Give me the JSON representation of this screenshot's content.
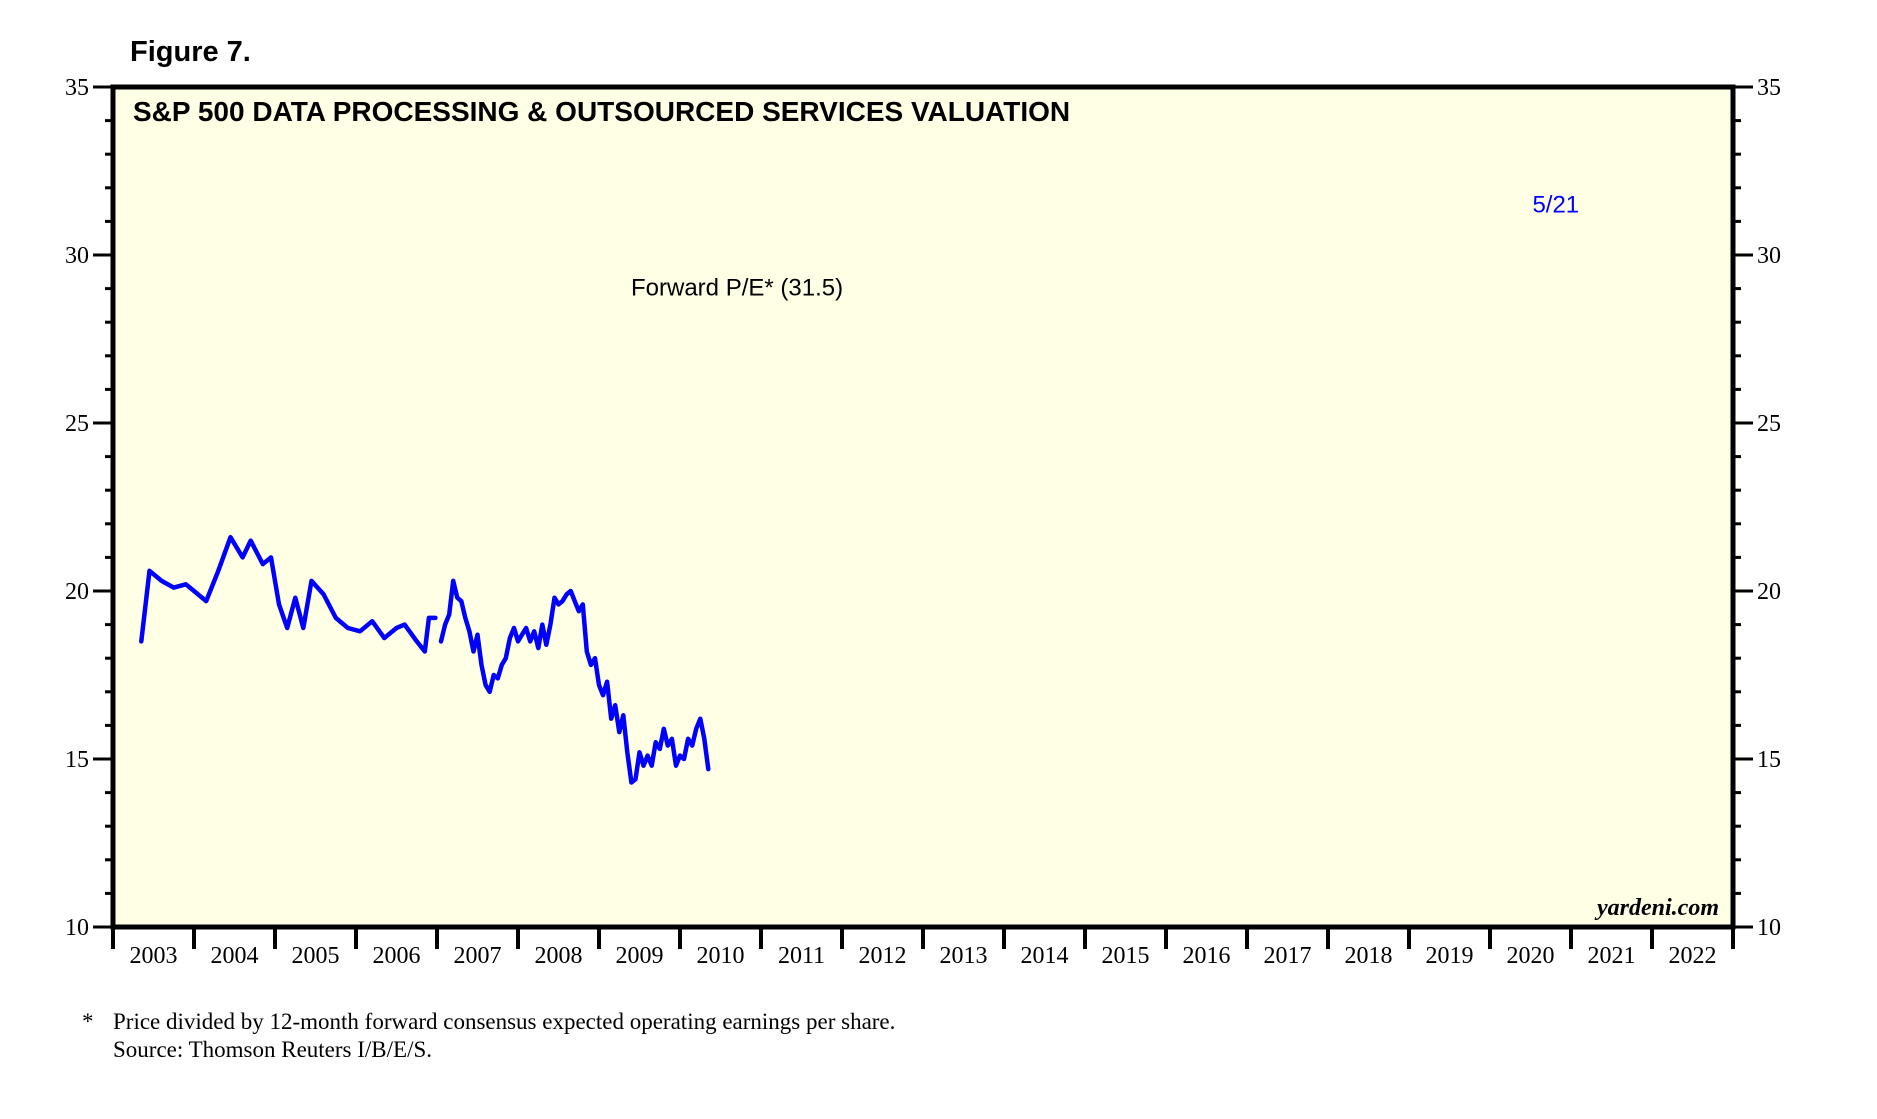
{
  "figure_label": "Figure 7.",
  "footnote": {
    "marker": "*",
    "line1": "Price divided by 12-month forward consensus expected operating earnings per share.",
    "line2": "Source: Thomson Reuters I/B/E/S."
  },
  "colors": {
    "background": "#ffffe6",
    "series": "#0000ff",
    "axis": "#000000"
  },
  "chart_data": {
    "type": "line",
    "title": "S&P 500 DATA PROCESSING & OUTSOURCED SERVICES VALUATION",
    "xlabel": "",
    "ylabel": "",
    "xlim": [
      2003,
      2023
    ],
    "ylim": [
      10,
      35
    ],
    "y_ticks": [
      10,
      15,
      20,
      25,
      30,
      35
    ],
    "y_minor_step": 1,
    "y_axes": [
      "left",
      "right"
    ],
    "x_tick_labels": [
      "2003",
      "2004",
      "2005",
      "2006",
      "2007",
      "2008",
      "2009",
      "2010",
      "2011",
      "2012",
      "2013",
      "2014",
      "2015",
      "2016",
      "2017",
      "2018",
      "2019",
      "2020",
      "2021",
      "2022"
    ],
    "grid": false,
    "legend": "none",
    "watermark": "yardeni.com",
    "annotations": [
      {
        "text": "Forward P/E* (31.5)",
        "x": 2011.0,
        "y": 28.8
      },
      {
        "text": "5/21",
        "x": 2020.45,
        "y": 31.5
      }
    ],
    "series": [
      {
        "name": "Forward P/E",
        "segments": [
          {
            "x": [
              2003.35,
              2003.45,
              2003.6,
              2003.75,
              2003.9,
              2004.0,
              2004.15,
              2004.3,
              2004.45,
              2004.6,
              2004.7,
              2004.85,
              2004.95,
              2005.05,
              2005.15,
              2005.25,
              2005.35,
              2005.45,
              2005.6,
              2005.75,
              2005.9,
              2006.05,
              2006.2,
              2006.35,
              2006.5,
              2006.6,
              2006.75,
              2006.85,
              2006.9,
              2006.98
            ],
            "y": [
              18.5,
              20.6,
              20.3,
              20.1,
              20.2,
              20.0,
              19.7,
              20.6,
              21.6,
              21.0,
              21.5,
              20.8,
              21.0,
              19.6,
              18.9,
              19.8,
              18.9,
              20.3,
              19.9,
              19.2,
              18.9,
              18.8,
              19.1,
              18.6,
              18.9,
              19.0,
              18.5,
              18.2,
              19.2,
              19.2
            ]
          },
          {
            "x": [
              2007.05,
              2007.1,
              2007.15,
              2007.2,
              2007.25,
              2007.3,
              2007.35,
              2007.4,
              2007.45,
              2007.5,
              2007.55,
              2007.6,
              2007.65,
              2007.7,
              2007.75,
              2007.8,
              2007.85,
              2007.9,
              2007.95,
              2008.0,
              2008.05,
              2008.1,
              2008.15,
              2008.2,
              2008.25,
              2008.3,
              2008.35,
              2008.4,
              2008.45,
              2008.5,
              2008.55,
              2008.6,
              2008.65,
              2008.7,
              2008.75,
              2008.8,
              2008.85,
              2008.9,
              2008.95,
              2009.0,
              2009.05,
              2009.1,
              2009.15,
              2009.2,
              2009.25,
              2009.3,
              2009.35,
              2009.4,
              2009.45,
              2009.5,
              2009.55,
              2009.6,
              2009.65,
              2009.7,
              2009.75,
              2009.8,
              2009.85,
              2009.9,
              2009.95,
              2010.0,
              2010.05,
              2010.1,
              2010.15,
              2010.2,
              2010.25,
              2010.3,
              2010.35
            ],
            "y": [
              18.5,
              19.0,
              19.3,
              20.3,
              19.8,
              19.7,
              19.2,
              18.8,
              18.2,
              18.7,
              17.8,
              17.2,
              17.0,
              17.5,
              17.4,
              17.8,
              18.0,
              18.6,
              18.9,
              18.5,
              18.7,
              18.9,
              18.5,
              18.8,
              18.3,
              19.0,
              18.4,
              19.0,
              19.8,
              19.6,
              19.7,
              19.9,
              20.0,
              19.7,
              19.4,
              19.6,
              18.2,
              17.8,
              18.0,
              17.2,
              16.9,
              17.3,
              16.2,
              16.6,
              15.8,
              16.3,
              15.2,
              14.3,
              14.4,
              15.2,
              14.8,
              15.1,
              14.8,
              15.5,
              15.3,
              15.9,
              15.4,
              15.6,
              14.8,
              15.1,
              15.0,
              15.6,
              15.4,
              15.9,
              16.2,
              15.6,
              14.7
            ]
          }
        ]
      }
    ]
  }
}
